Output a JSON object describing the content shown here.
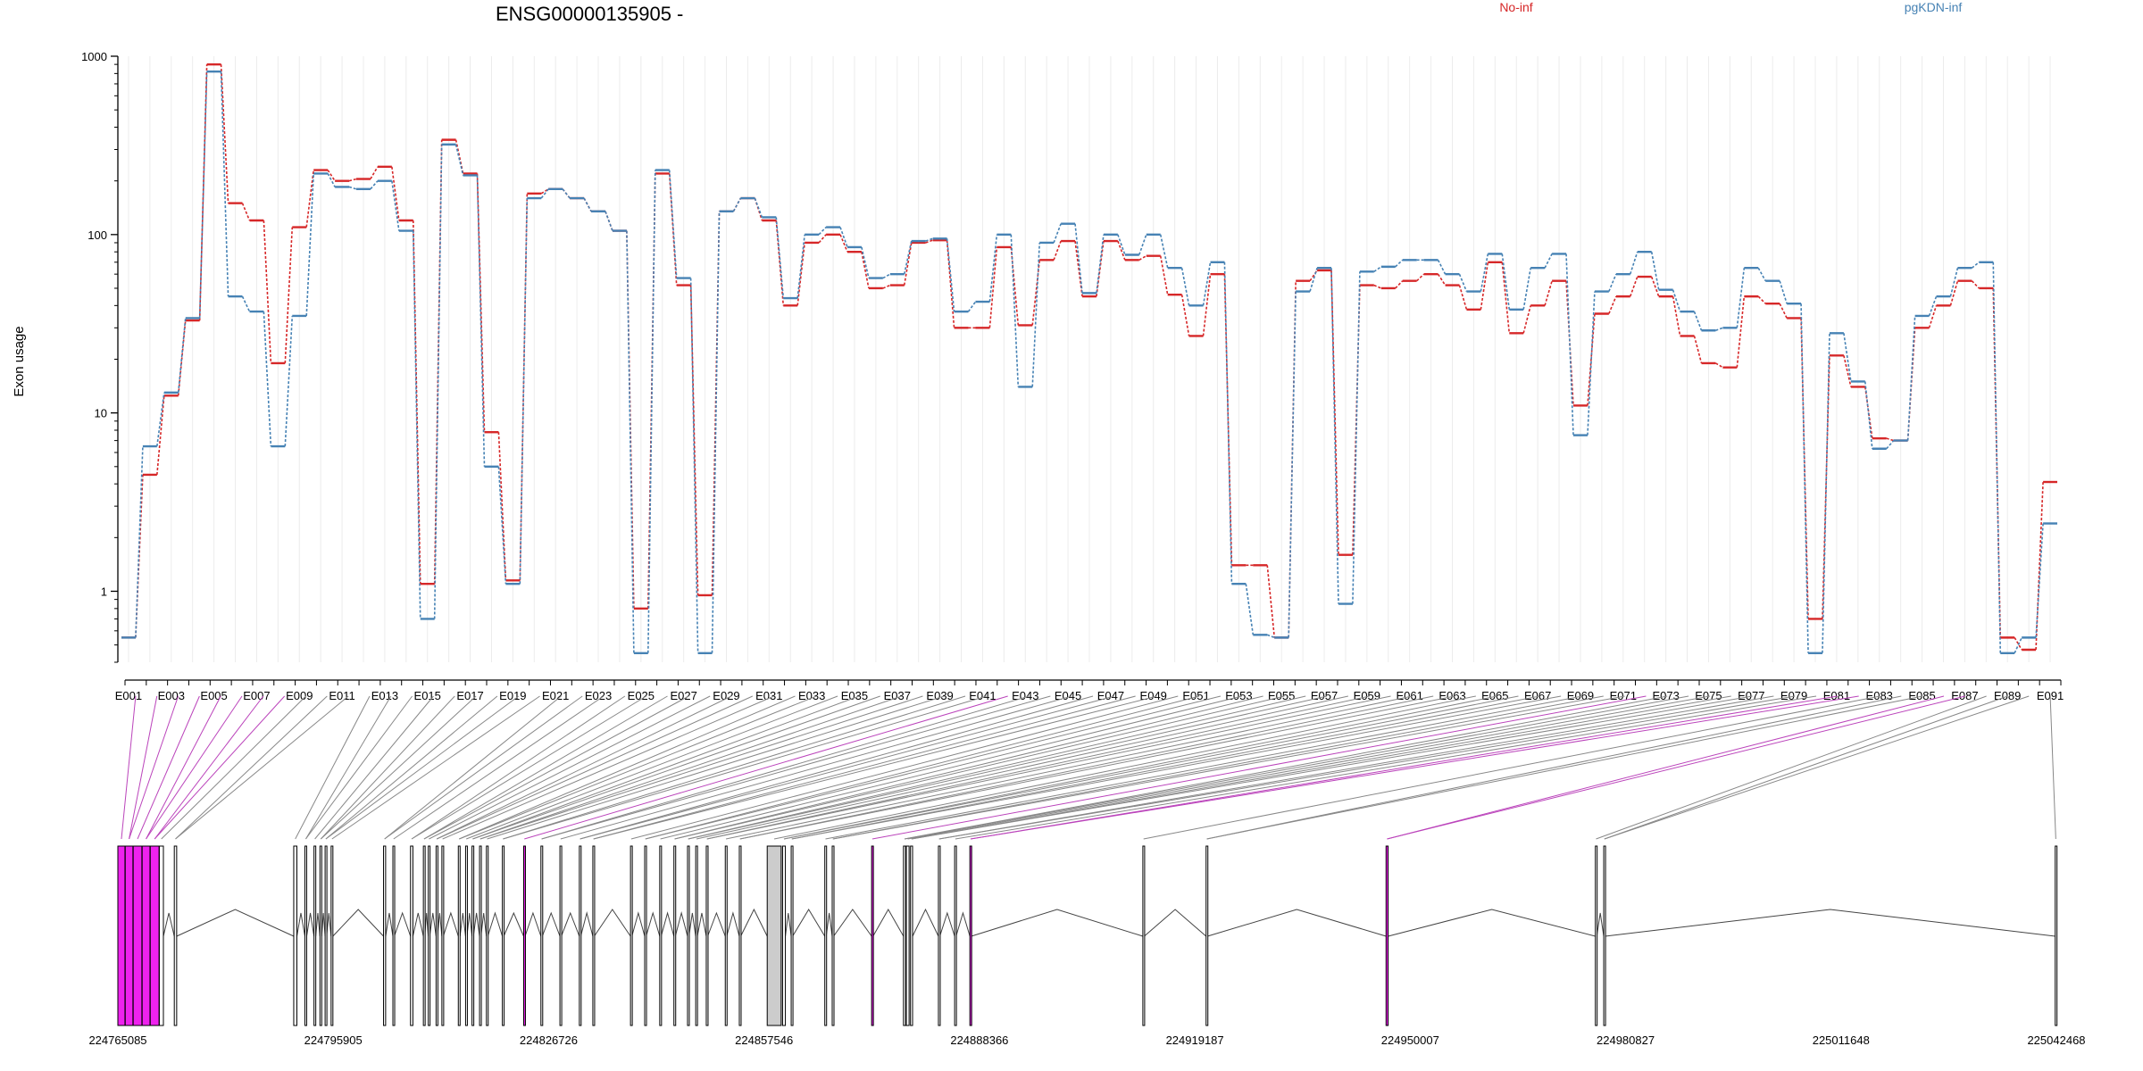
{
  "chart_data": {
    "type": "line",
    "title": "ENSG00000135905 -",
    "ylabel": "Exon usage",
    "xlabel": "",
    "yscale": "log",
    "ylim": [
      0.4,
      1000
    ],
    "yticks": [
      1,
      10,
      100,
      1000
    ],
    "ytick_labels": [
      "1",
      "10",
      "100",
      "1000"
    ],
    "grid": "vertical-light",
    "legend_placement": "top-right",
    "colors": {
      "No-inf": "#d62728",
      "pgKDN-inf": "#4682b4",
      "exon_highlight": "#ee22ee",
      "exon_normal": "#ffffff",
      "exon_shaded": "#cccccc",
      "link_gray": "#888888",
      "link_magenta": "#bb44bb"
    },
    "categories": [
      "E001",
      "E002",
      "E003",
      "E004",
      "E005",
      "E006",
      "E007",
      "E008",
      "E009",
      "E010",
      "E011",
      "E012",
      "E013",
      "E014",
      "E015",
      "E016",
      "E017",
      "E018",
      "E019",
      "E020",
      "E021",
      "E022",
      "E023",
      "E024",
      "E025",
      "E026",
      "E027",
      "E028",
      "E029",
      "E030",
      "E031",
      "E032",
      "E033",
      "E034",
      "E035",
      "E036",
      "E037",
      "E038",
      "E039",
      "E040",
      "E041",
      "E042",
      "E043",
      "E044",
      "E045",
      "E046",
      "E047",
      "E048",
      "E049",
      "E050",
      "E051",
      "E052",
      "E053",
      "E054",
      "E055",
      "E056",
      "E057",
      "E058",
      "E059",
      "E060",
      "E061",
      "E062",
      "E063",
      "E064",
      "E065",
      "E066",
      "E067",
      "E068",
      "E069",
      "E070",
      "E071",
      "E072",
      "E073",
      "E074",
      "E075",
      "E076",
      "E077",
      "E078",
      "E079",
      "E080",
      "E081",
      "E082",
      "E083",
      "E084",
      "E085",
      "E086",
      "E087",
      "E088",
      "E089",
      "E090",
      "E091"
    ],
    "tick_labels": [
      "E001",
      "E003",
      "E005",
      "E007",
      "E009",
      "E011",
      "E013",
      "E015",
      "E017",
      "E019",
      "E021",
      "E023",
      "E025",
      "E027",
      "E029",
      "E031",
      "E033",
      "E035",
      "E037",
      "E039",
      "E041",
      "E043",
      "E045",
      "E047",
      "E049",
      "E051",
      "E053",
      "E055",
      "E057",
      "E059",
      "E061",
      "E063",
      "E065",
      "E067",
      "E069",
      "E071",
      "E073",
      "E075",
      "E077",
      "E079",
      "E081",
      "E083",
      "E085",
      "E087",
      "E089",
      "E091"
    ],
    "series": [
      {
        "name": "No-inf",
        "values": [
          0.55,
          4.5,
          12.5,
          33,
          900,
          150,
          120,
          19,
          110,
          230,
          200,
          205,
          240,
          120,
          1.1,
          340,
          220,
          7.8,
          1.15,
          170,
          180,
          160,
          135,
          105,
          0.8,
          220,
          52,
          0.95,
          135,
          160,
          120,
          40,
          90,
          100,
          80,
          50,
          52,
          90,
          93,
          30,
          30,
          85,
          31,
          72,
          92,
          45,
          92,
          72,
          76,
          46,
          27,
          60,
          1.4,
          1.4,
          0.55,
          55,
          63,
          1.6,
          52,
          50,
          55,
          60,
          52,
          38,
          70,
          28,
          40,
          55,
          11,
          36,
          45,
          58,
          45,
          27,
          19,
          18,
          45,
          41,
          34,
          0.7,
          21,
          14,
          7.2,
          7,
          30,
          40,
          55,
          50,
          0.55,
          0.47,
          4.1
        ]
      },
      {
        "name": "pgKDN-inf",
        "values": [
          0.55,
          6.5,
          13,
          34,
          820,
          45,
          37,
          6.5,
          35,
          220,
          185,
          180,
          200,
          105,
          0.7,
          320,
          215,
          5,
          1.1,
          160,
          180,
          160,
          135,
          105,
          0.45,
          230,
          57,
          0.45,
          135,
          160,
          125,
          44,
          100,
          110,
          85,
          57,
          60,
          92,
          95,
          37,
          42,
          100,
          14,
          90,
          115,
          47,
          100,
          77,
          100,
          65,
          40,
          70,
          1.1,
          0.57,
          0.55,
          48,
          65,
          0.85,
          62,
          66,
          72,
          72,
          60,
          48,
          78,
          38,
          65,
          78,
          7.5,
          48,
          60,
          80,
          49,
          37,
          29,
          30,
          65,
          55,
          41,
          0.45,
          28,
          15,
          6.3,
          7,
          35,
          45,
          65,
          70,
          0.45,
          0.55,
          2.4
        ]
      }
    ],
    "legend": [
      {
        "label": "No-inf",
        "color": "#d62728"
      },
      {
        "label": "pgKDN-inf",
        "color": "#4682b4"
      }
    ],
    "gene_axis": {
      "start": 224765085,
      "end": 225042468,
      "tick_values": [
        224765085,
        224795905,
        224826726,
        224857546,
        224888366,
        224919187,
        224950007,
        224980827,
        225011648,
        225042468
      ],
      "tick_labels": [
        "224765085",
        "224795905",
        "224826726",
        "224857546",
        "224888366",
        "224919187",
        "224950007",
        "224980827",
        "225011648",
        "225042468"
      ],
      "exon_starts": [
        224765085,
        224766140,
        224767280,
        224768560,
        224769720,
        224771020,
        224773160,
        224790250,
        224791850,
        224793150,
        224794000,
        224794740,
        224795600,
        224803100,
        224804440,
        224806960,
        224808800,
        224809500,
        224810620,
        224811450,
        224813800,
        224814840,
        224815760,
        224816840,
        224817820,
        224820100,
        224823150,
        224825620,
        224828340,
        224831120,
        224833050,
        224838440,
        224840470,
        224842620,
        224844650,
        224846600,
        224847770,
        224849280,
        224852000,
        224854010,
        224858000,
        224860200,
        224861430,
        224866240,
        224867300,
        224872940,
        224877500,
        224877900,
        224878500,
        224882500,
        224884820,
        224887000,
        224911750,
        224920800,
        224946550,
        224976500,
        224977700,
        225042300
      ],
      "exon_ends": [
        224766100,
        224767240,
        224768520,
        224769680,
        224770980,
        224771600,
        224773500,
        224790700,
        224792100,
        224793400,
        224794250,
        224794950,
        224795850,
        224803400,
        224804640,
        224807300,
        224809000,
        224809700,
        224810820,
        224811650,
        224814050,
        224815040,
        224815960,
        224817040,
        224818020,
        224820300,
        224823350,
        224825820,
        224828540,
        224831320,
        224833250,
        224838640,
        224840670,
        224842820,
        224844850,
        224846800,
        224848000,
        224849480,
        224852200,
        224854210,
        224860000,
        224860600,
        224861630,
        224866440,
        224867500,
        224873140,
        224877800,
        224878300,
        224878800,
        224882700,
        224885020,
        224887200,
        224911950,
        224921000,
        224946850,
        224976700,
        224977900,
        225042468
      ],
      "highlighted": [
        0,
        1,
        2,
        3,
        4,
        26,
        45,
        51,
        54
      ],
      "shaded": [
        40
      ]
    }
  }
}
